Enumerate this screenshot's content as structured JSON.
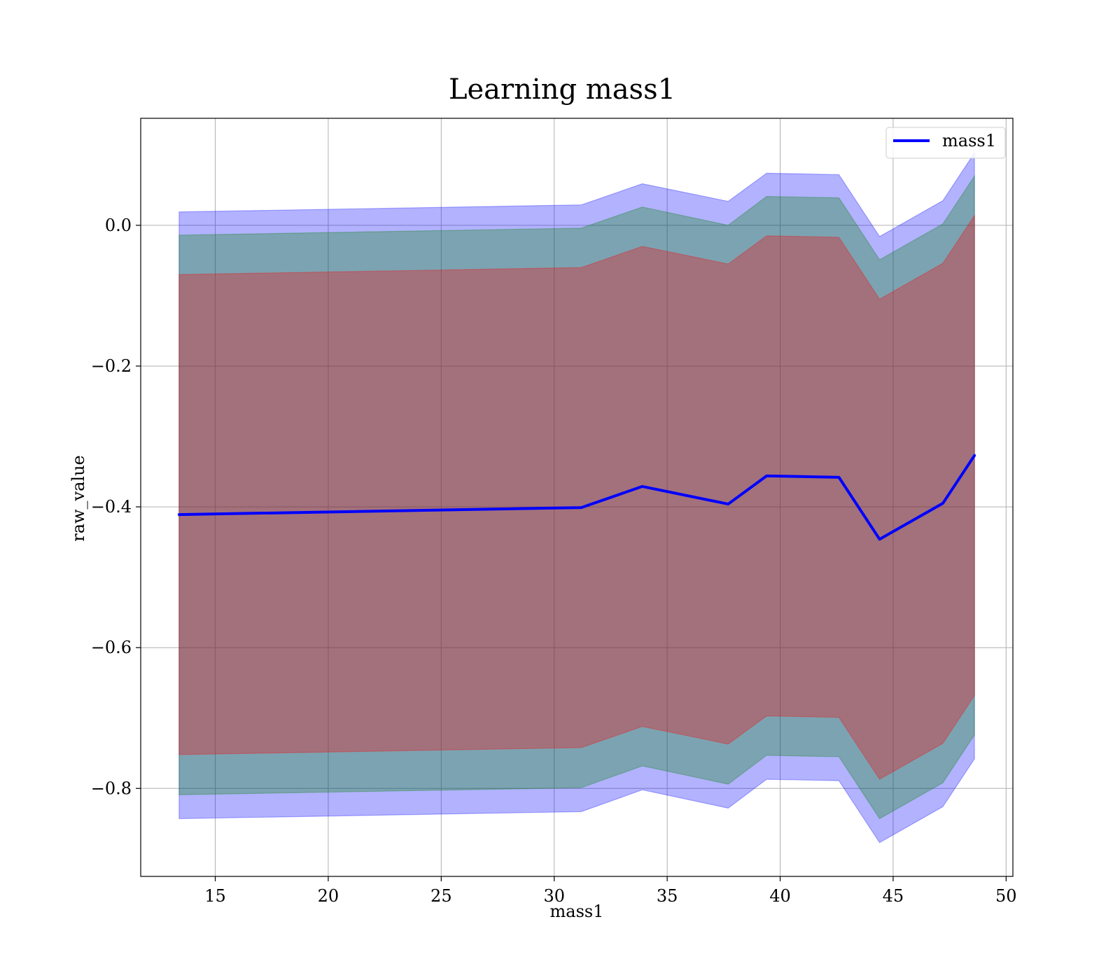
{
  "chart_data": {
    "type": "line",
    "title": "Learning mass1",
    "xlabel": "mass1",
    "ylabel": "raw_value",
    "xlim": [
      11.7,
      50.3
    ],
    "ylim": [
      -0.925,
      0.152
    ],
    "xticks": [
      15,
      20,
      25,
      30,
      35,
      40,
      45,
      50
    ],
    "xtick_labels": [
      "15",
      "20",
      "25",
      "30",
      "35",
      "40",
      "45",
      "50"
    ],
    "yticks": [
      0.0,
      -0.2,
      -0.4,
      -0.6,
      -0.8
    ],
    "ytick_labels": [
      "0.0",
      "−0.2",
      "−0.4",
      "−0.6",
      "−0.8"
    ],
    "grid": true,
    "legend": {
      "position": "top-right",
      "entries": [
        "mass1"
      ]
    },
    "x": [
      13.4,
      31.2,
      33.9,
      37.7,
      39.4,
      42.6,
      44.4,
      47.2,
      48.6
    ],
    "series": [
      {
        "name": "mass1",
        "color": "#0000ff",
        "values": [
          -0.411,
          -0.401,
          -0.371,
          -0.396,
          -0.356,
          -0.358,
          -0.446,
          -0.395,
          -0.327
        ]
      }
    ],
    "bands": [
      {
        "color": "#0000ff",
        "lower": [
          -0.843,
          -0.833,
          -0.802,
          -0.828,
          -0.787,
          -0.789,
          -0.877,
          -0.826,
          -0.758
        ],
        "upper": [
          0.019,
          0.029,
          0.059,
          0.034,
          0.074,
          0.072,
          -0.016,
          0.035,
          0.103
        ]
      },
      {
        "color": "#008000",
        "lower": [
          -0.809,
          -0.799,
          -0.768,
          -0.794,
          -0.753,
          -0.755,
          -0.843,
          -0.792,
          -0.724
        ],
        "upper": [
          -0.014,
          -0.004,
          0.026,
          0.0,
          0.041,
          0.039,
          -0.049,
          0.002,
          0.07
        ]
      },
      {
        "color": "#ff0000",
        "lower": [
          -0.752,
          -0.742,
          -0.712,
          -0.737,
          -0.697,
          -0.699,
          -0.787,
          -0.736,
          -0.668
        ],
        "upper": [
          -0.07,
          -0.06,
          -0.03,
          -0.055,
          -0.015,
          -0.017,
          -0.105,
          -0.054,
          0.014
        ]
      }
    ]
  }
}
